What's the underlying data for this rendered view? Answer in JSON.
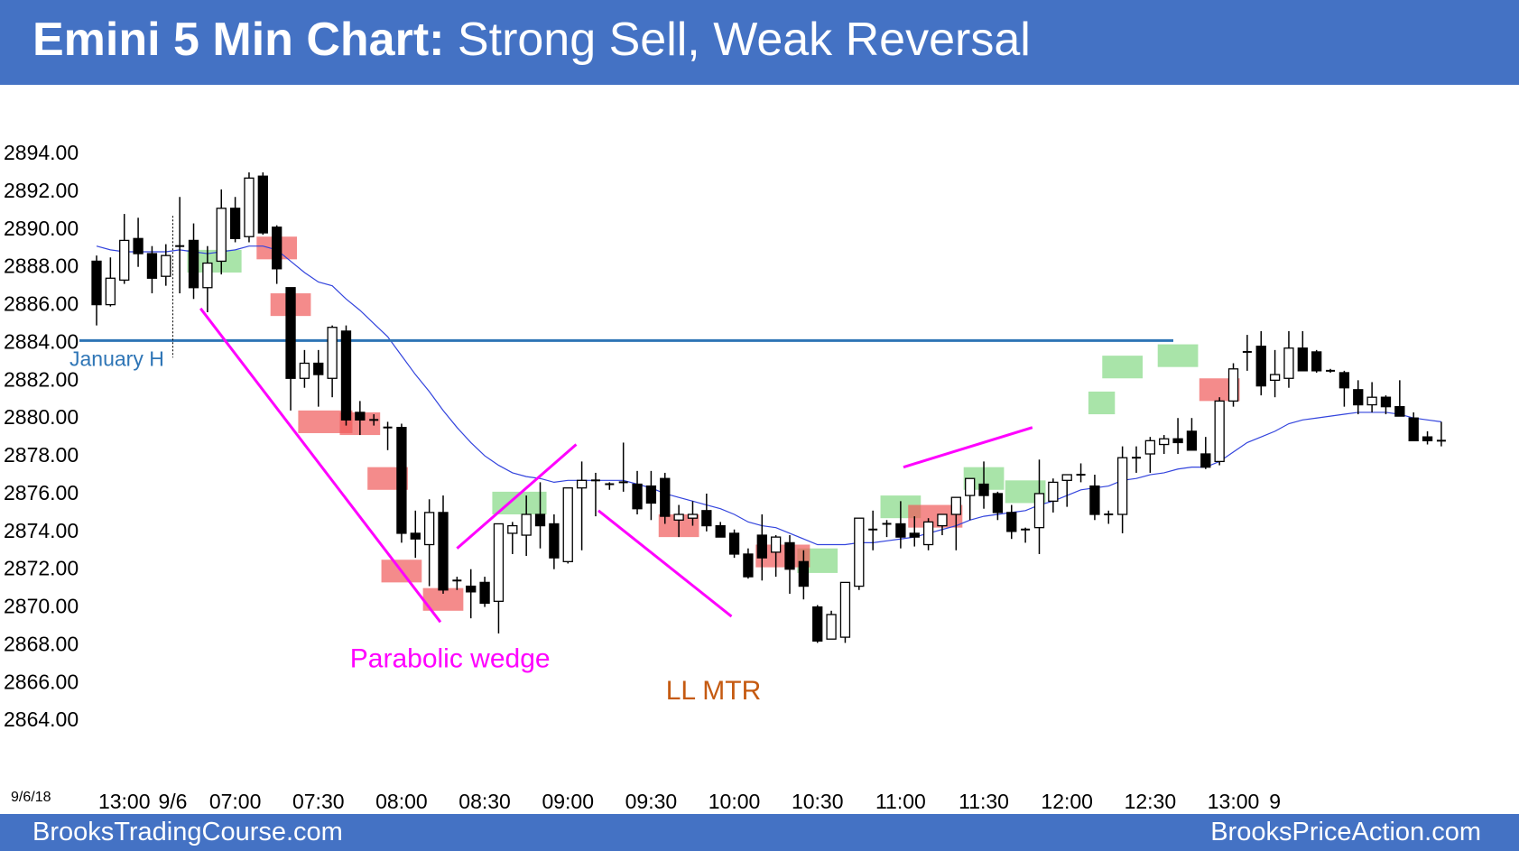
{
  "header": {
    "title_bold": "Emini 5 Min Chart:",
    "title_rest": " Strong Sell, Weak Reversal",
    "background": "#4472c4"
  },
  "footer": {
    "left_text": "BrooksTradingCourse.com",
    "right_text": "BrooksPriceAction.com",
    "background": "#4472c4"
  },
  "chart_data": {
    "type": "candlestick",
    "ylim": [
      2862,
      2896
    ],
    "yticks": [
      "2894.00",
      "2892.00",
      "2890.00",
      "2888.00",
      "2886.00",
      "2884.00",
      "2882.00",
      "2880.00",
      "2878.00",
      "2876.00",
      "2874.00",
      "2872.00",
      "2870.00",
      "2868.00",
      "2866.00",
      "2864.00"
    ],
    "ytick_values": [
      2894,
      2892,
      2890,
      2888,
      2886,
      2884,
      2882,
      2880,
      2878,
      2876,
      2874,
      2872,
      2870,
      2868,
      2866,
      2864
    ],
    "date_label": "9/6/18",
    "xticks": [
      {
        "label": "13:00",
        "bar": 2
      },
      {
        "label": "9/6",
        "bar": 5.5
      },
      {
        "label": "07:00",
        "bar": 10
      },
      {
        "label": "07:30",
        "bar": 16
      },
      {
        "label": "08:00",
        "bar": 22
      },
      {
        "label": "08:30",
        "bar": 28
      },
      {
        "label": "09:00",
        "bar": 34
      },
      {
        "label": "09:30",
        "bar": 40
      },
      {
        "label": "10:00",
        "bar": 46
      },
      {
        "label": "10:30",
        "bar": 52
      },
      {
        "label": "11:00",
        "bar": 58
      },
      {
        "label": "11:30",
        "bar": 64
      },
      {
        "label": "12:00",
        "bar": 70
      },
      {
        "label": "12:30",
        "bar": 76
      },
      {
        "label": "13:00",
        "bar": 82
      },
      {
        "label": "9",
        "bar": 85
      }
    ],
    "bars": [
      [
        2888.2,
        2888.5,
        2884.8,
        2885.9
      ],
      [
        2885.9,
        2888.4,
        2885.8,
        2887.3
      ],
      [
        2887.2,
        2890.7,
        2887.0,
        2889.3
      ],
      [
        2889.4,
        2890.5,
        2887.9,
        2888.6
      ],
      [
        2888.6,
        2889.0,
        2886.5,
        2887.3
      ],
      [
        2887.4,
        2889.1,
        2886.9,
        2888.5
      ],
      [
        2889.0,
        2891.6,
        2886.5,
        2889.0
      ],
      [
        2889.3,
        2890.2,
        2886.2,
        2886.8
      ],
      [
        2886.8,
        2889.0,
        2885.5,
        2888.1
      ],
      [
        2888.2,
        2892.0,
        2887.5,
        2891.0
      ],
      [
        2891.0,
        2891.6,
        2889.2,
        2889.4
      ],
      [
        2889.5,
        2892.9,
        2889.2,
        2892.6
      ],
      [
        2892.7,
        2892.9,
        2889.6,
        2889.7
      ],
      [
        2890.0,
        2890.1,
        2887.0,
        2887.8
      ],
      [
        2886.8,
        2886.8,
        2880.3,
        2882.0
      ],
      [
        2882.0,
        2883.5,
        2881.5,
        2882.8
      ],
      [
        2882.8,
        2883.5,
        2880.5,
        2882.2
      ],
      [
        2882.0,
        2884.8,
        2881.0,
        2884.7
      ],
      [
        2884.5,
        2884.8,
        2879.5,
        2879.8
      ],
      [
        2880.2,
        2880.8,
        2879.0,
        2879.8
      ],
      [
        2879.8,
        2880.1,
        2879.5,
        2879.8
      ],
      [
        2879.5,
        2879.7,
        2878.2,
        2879.4
      ],
      [
        2879.4,
        2879.6,
        2873.3,
        2873.8
      ],
      [
        2873.8,
        2875.0,
        2872.5,
        2873.5
      ],
      [
        2873.2,
        2875.6,
        2871.0,
        2874.9
      ],
      [
        2874.9,
        2875.8,
        2870.6,
        2870.8
      ],
      [
        2871.5,
        2871.5,
        2870.8,
        2871.3
      ],
      [
        2871.0,
        2871.9,
        2869.3,
        2870.7
      ],
      [
        2871.2,
        2871.5,
        2869.9,
        2870.1
      ],
      [
        2870.2,
        2874.1,
        2868.5,
        2874.3
      ],
      [
        2873.8,
        2874.4,
        2872.7,
        2874.2
      ],
      [
        2873.7,
        2875.8,
        2872.6,
        2874.8
      ],
      [
        2874.8,
        2876.5,
        2873.0,
        2874.2
      ],
      [
        2874.3,
        2874.8,
        2871.9,
        2872.5
      ],
      [
        2872.3,
        2875.6,
        2872.2,
        2876.2
      ],
      [
        2876.2,
        2877.6,
        2872.9,
        2876.6
      ],
      [
        2876.7,
        2877.0,
        2874.7,
        2876.6
      ],
      [
        2876.3,
        2876.5,
        2876.1,
        2876.4
      ],
      [
        2876.4,
        2878.6,
        2876.0,
        2876.5
      ],
      [
        2876.4,
        2877.1,
        2874.8,
        2875.1
      ],
      [
        2876.3,
        2877.1,
        2874.5,
        2875.4
      ],
      [
        2876.7,
        2877.0,
        2874.3,
        2874.7
      ],
      [
        2874.5,
        2875.3,
        2873.6,
        2874.8
      ],
      [
        2874.6,
        2875.5,
        2874.2,
        2874.8
      ],
      [
        2875.0,
        2875.9,
        2873.9,
        2874.2
      ],
      [
        2874.2,
        2874.4,
        2873.6,
        2873.6
      ],
      [
        2873.8,
        2874.0,
        2872.5,
        2872.7
      ],
      [
        2872.7,
        2873.0,
        2871.4,
        2871.5
      ],
      [
        2873.7,
        2874.8,
        2871.3,
        2872.5
      ],
      [
        2872.8,
        2873.7,
        2871.5,
        2873.6
      ],
      [
        2873.3,
        2873.7,
        2870.6,
        2871.9
      ],
      [
        2872.3,
        2872.9,
        2870.3,
        2871.0
      ],
      [
        2869.9,
        2870.0,
        2868.0,
        2868.1
      ],
      [
        2868.2,
        2869.7,
        2868.2,
        2869.5
      ],
      [
        2868.3,
        2871.2,
        2868.0,
        2871.2
      ],
      [
        2871.0,
        2874.5,
        2870.8,
        2874.6
      ],
      [
        2874.0,
        2875.0,
        2872.9,
        2874.0
      ],
      [
        2874.2,
        2874.5,
        2873.6,
        2874.3
      ],
      [
        2874.3,
        2875.5,
        2873.0,
        2873.6
      ],
      [
        2873.8,
        2874.7,
        2873.1,
        2873.6
      ],
      [
        2873.2,
        2874.6,
        2872.9,
        2874.4
      ],
      [
        2874.2,
        2874.8,
        2873.7,
        2874.8
      ],
      [
        2874.8,
        2874.9,
        2872.9,
        2875.7
      ],
      [
        2875.8,
        2876.3,
        2874.5,
        2876.7
      ],
      [
        2876.4,
        2877.6,
        2875.1,
        2875.8
      ],
      [
        2875.9,
        2876.0,
        2874.5,
        2874.9
      ],
      [
        2874.9,
        2875.3,
        2873.5,
        2873.9
      ],
      [
        2873.9,
        2874.1,
        2873.3,
        2874.0
      ],
      [
        2874.1,
        2877.7,
        2872.7,
        2875.9
      ],
      [
        2875.5,
        2876.7,
        2874.9,
        2876.5
      ],
      [
        2876.6,
        2876.8,
        2875.2,
        2876.9
      ],
      [
        2877.0,
        2877.5,
        2876.5,
        2876.9
      ],
      [
        2876.3,
        2876.9,
        2874.5,
        2874.8
      ],
      [
        2874.9,
        2875.0,
        2874.3,
        2874.8
      ],
      [
        2874.8,
        2878.4,
        2873.8,
        2877.8
      ],
      [
        2877.8,
        2878.4,
        2877.0,
        2877.8
      ],
      [
        2878.0,
        2878.9,
        2877.0,
        2878.7
      ],
      [
        2878.5,
        2879.0,
        2878.0,
        2878.8
      ],
      [
        2878.8,
        2879.9,
        2878.0,
        2878.6
      ],
      [
        2879.2,
        2879.9,
        2878.2,
        2878.2
      ],
      [
        2878.0,
        2878.9,
        2877.2,
        2877.3
      ],
      [
        2877.6,
        2881.0,
        2877.4,
        2880.8
      ],
      [
        2880.8,
        2882.8,
        2880.5,
        2882.5
      ],
      [
        2883.6,
        2884.3,
        2882.4,
        2883.4
      ],
      [
        2883.7,
        2884.5,
        2881.1,
        2881.6
      ],
      [
        2881.9,
        2883.5,
        2881.0,
        2882.2
      ],
      [
        2882.0,
        2884.5,
        2881.5,
        2883.6
      ],
      [
        2883.6,
        2884.5,
        2882.4,
        2882.4
      ],
      [
        2883.4,
        2883.5,
        2882.3,
        2882.4
      ],
      [
        2882.3,
        2882.5,
        2882.3,
        2882.4
      ],
      [
        2882.3,
        2882.4,
        2880.5,
        2881.5
      ],
      [
        2881.4,
        2881.9,
        2880.1,
        2880.6
      ],
      [
        2880.6,
        2881.8,
        2880.2,
        2881.0
      ],
      [
        2881.0,
        2881.1,
        2880.1,
        2880.5
      ],
      [
        2880.5,
        2881.9,
        2880.0,
        2880.0
      ],
      [
        2879.9,
        2880.2,
        2878.7,
        2878.7
      ],
      [
        2878.9,
        2879.2,
        2878.5,
        2878.7
      ],
      [
        2878.7,
        2879.7,
        2878.4,
        2878.7
      ]
    ],
    "ema": [
      2889.0,
      2888.8,
      2888.7,
      2888.7,
      2888.7,
      2888.7,
      2888.8,
      2888.7,
      2888.6,
      2888.7,
      2888.8,
      2889.0,
      2889.0,
      2888.8,
      2888.2,
      2887.6,
      2887.1,
      2886.9,
      2886.2,
      2885.6,
      2884.9,
      2884.2,
      2883.2,
      2882.2,
      2881.3,
      2880.3,
      2879.4,
      2878.6,
      2877.9,
      2877.4,
      2877.0,
      2876.8,
      2876.7,
      2876.5,
      2876.6,
      2876.6,
      2876.6,
      2876.6,
      2876.6,
      2876.4,
      2876.2,
      2875.9,
      2875.7,
      2875.5,
      2875.3,
      2875.1,
      2874.8,
      2874.4,
      2874.2,
      2874.1,
      2873.8,
      2873.5,
      2873.2,
      2873.2,
      2873.2,
      2873.3,
      2873.3,
      2873.4,
      2873.5,
      2873.6,
      2873.8,
      2874.0,
      2874.2,
      2874.5,
      2874.7,
      2874.8,
      2874.9,
      2875.0,
      2875.3,
      2875.5,
      2875.8,
      2876.1,
      2876.2,
      2876.3,
      2876.6,
      2876.7,
      2876.9,
      2877.0,
      2877.2,
      2877.3,
      2877.3,
      2877.6,
      2878.1,
      2878.6,
      2878.9,
      2879.2,
      2879.6,
      2879.8,
      2879.9,
      2880.0,
      2880.1,
      2880.2,
      2880.2,
      2880.2,
      2880.1,
      2879.9,
      2879.8,
      2879.7
    ],
    "hline": {
      "value": 2884.0,
      "label": "January H",
      "color": "#2e75b6"
    },
    "green_boxes": [
      {
        "b0": 7,
        "b1": 10,
        "top": 2888.8,
        "bottom": 2887.6
      },
      {
        "b0": 29,
        "b1": 32,
        "top": 2876.0,
        "bottom": 2874.8
      },
      {
        "b0": 51,
        "b1": 53,
        "top": 2873.0,
        "bottom": 2871.7
      },
      {
        "b0": 57,
        "b1": 59,
        "top": 2875.8,
        "bottom": 2874.6
      },
      {
        "b0": 63,
        "b1": 65,
        "top": 2877.3,
        "bottom": 2876.1
      },
      {
        "b0": 66,
        "b1": 68,
        "top": 2876.6,
        "bottom": 2875.4
      },
      {
        "b0": 72,
        "b1": 73,
        "top": 2881.3,
        "bottom": 2880.1
      },
      {
        "b0": 73,
        "b1": 75,
        "top": 2883.2,
        "bottom": 2882.0
      },
      {
        "b0": 77,
        "b1": 79,
        "top": 2883.8,
        "bottom": 2882.6
      }
    ],
    "red_boxes": [
      {
        "b0": 12,
        "b1": 14,
        "top": 2889.5,
        "bottom": 2888.3
      },
      {
        "b0": 13,
        "b1": 15,
        "top": 2886.5,
        "bottom": 2885.3
      },
      {
        "b0": 15,
        "b1": 18,
        "top": 2880.3,
        "bottom": 2879.1
      },
      {
        "b0": 18,
        "b1": 20,
        "top": 2880.2,
        "bottom": 2879.0
      },
      {
        "b0": 20,
        "b1": 22,
        "top": 2877.3,
        "bottom": 2876.1
      },
      {
        "b0": 21,
        "b1": 23,
        "top": 2872.4,
        "bottom": 2871.2
      },
      {
        "b0": 24,
        "b1": 26,
        "top": 2870.9,
        "bottom": 2869.7
      },
      {
        "b0": 41,
        "b1": 43,
        "top": 2874.8,
        "bottom": 2873.6
      },
      {
        "b0": 48,
        "b1": 51,
        "top": 2873.2,
        "bottom": 2872.0
      },
      {
        "b0": 59,
        "b1": 62,
        "top": 2875.3,
        "bottom": 2874.1
      },
      {
        "b0": 80,
        "b1": 82,
        "top": 2882.0,
        "bottom": 2880.8
      }
    ],
    "trendlines": [
      {
        "x1": 7.5,
        "y1": 2885.7,
        "x2": 24.8,
        "y2": 2869.1
      },
      {
        "x1": 26.0,
        "y1": 2873.0,
        "x2": 34.6,
        "y2": 2878.5
      },
      {
        "x1": 36.2,
        "y1": 2875.0,
        "x2": 45.8,
        "y2": 2869.4
      },
      {
        "x1": 58.2,
        "y1": 2877.3,
        "x2": 67.5,
        "y2": 2879.4
      }
    ],
    "trendline_color": "#ff00ff",
    "annotations": [
      {
        "text": "Parabolic wedge",
        "bar": 25.5,
        "value": 2866.7,
        "color": "#ff00ff"
      },
      {
        "text": "LL MTR",
        "bar": 44.5,
        "value": 2865.0,
        "color": "#c55a11"
      }
    ]
  }
}
